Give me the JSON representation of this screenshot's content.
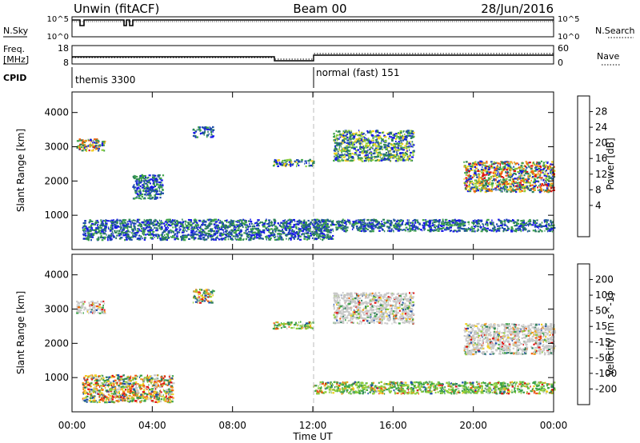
{
  "header": {
    "site": "Unwin (fitACF)",
    "beam": "Beam 00",
    "date": "28/Jun/2016"
  },
  "strips": {
    "nsky_label": "N.Sky",
    "nsearch_label": "N.Search",
    "nsky_ticks": [
      "10^5",
      "10^0"
    ],
    "nsearch_ticks": [
      "10^5",
      "10^0"
    ],
    "freq_label_1": "Freq.",
    "freq_label_2": "[MHz]",
    "freq_ticks": [
      "18",
      "8"
    ],
    "nave_label": "Nave",
    "nave_ticks": [
      "60",
      "0"
    ],
    "cpid_label": "CPID",
    "cpid_left": "themis 3300",
    "cpid_right": "normal (fast) 151"
  },
  "x_axis": {
    "label": "Time UT",
    "ticks": [
      "00:00",
      "04:00",
      "08:00",
      "12:00",
      "16:00",
      "20:00",
      "00:00"
    ],
    "hours": [
      0,
      4,
      8,
      12,
      16,
      20,
      24
    ],
    "range": [
      0,
      24
    ]
  },
  "chart_data": [
    {
      "type": "heatmap",
      "title": "",
      "ylabel": "Slant Range [km]",
      "yticks": [
        1000,
        2000,
        3000,
        4000
      ],
      "ylim": [
        0,
        4600
      ],
      "xlim": [
        0,
        24
      ],
      "colorbar": {
        "label": "Power [dB]",
        "ticks": [
          "28",
          "24",
          "20",
          "16",
          "12",
          "8",
          "4"
        ],
        "values": [
          28,
          24,
          20,
          16,
          12,
          8,
          4
        ]
      },
      "regions": [
        {
          "t0": 0.2,
          "t1": 1.6,
          "r0": 2900,
          "r1": 3250,
          "level": "high"
        },
        {
          "t0": 0.5,
          "t1": 13.0,
          "r0": 300,
          "r1": 900,
          "level": "low"
        },
        {
          "t0": 3.0,
          "t1": 4.5,
          "r0": 1500,
          "r1": 2200,
          "level": "low"
        },
        {
          "t0": 6.0,
          "t1": 7.0,
          "r0": 3300,
          "r1": 3600,
          "level": "low"
        },
        {
          "t0": 10.0,
          "t1": 12.0,
          "r0": 2450,
          "r1": 2650,
          "level": "mid"
        },
        {
          "t0": 12.0,
          "t1": 24.0,
          "r0": 550,
          "r1": 900,
          "level": "low"
        },
        {
          "t0": 13.0,
          "t1": 17.0,
          "r0": 2600,
          "r1": 3500,
          "level": "mid"
        },
        {
          "t0": 19.5,
          "t1": 24.0,
          "r0": 1700,
          "r1": 2600,
          "level": "high"
        }
      ]
    },
    {
      "type": "heatmap",
      "title": "",
      "ylabel": "Slant Range [km]",
      "yticks": [
        1000,
        2000,
        3000,
        4000
      ],
      "ylim": [
        0,
        4600
      ],
      "xlim": [
        0,
        24
      ],
      "colorbar": {
        "label": "Velocity [m s^-1]",
        "ticks": [
          "200",
          "100",
          "50",
          "15",
          "-15",
          "-50",
          "-100",
          "-200"
        ],
        "values": [
          200,
          100,
          50,
          15,
          -15,
          -50,
          -100,
          -200
        ]
      },
      "regions": [
        {
          "t0": 0.2,
          "t1": 1.6,
          "r0": 2900,
          "r1": 3250,
          "level": "ground"
        },
        {
          "t0": 0.5,
          "t1": 5.0,
          "r0": 300,
          "r1": 1100,
          "level": "mixed"
        },
        {
          "t0": 6.0,
          "t1": 7.0,
          "r0": 3200,
          "r1": 3600,
          "level": "mixed"
        },
        {
          "t0": 10.0,
          "t1": 12.0,
          "r0": 2450,
          "r1": 2650,
          "level": "pos"
        },
        {
          "t0": 12.0,
          "t1": 24.0,
          "r0": 550,
          "r1": 900,
          "level": "pos"
        },
        {
          "t0": 13.0,
          "t1": 17.0,
          "r0": 2600,
          "r1": 3500,
          "level": "ground"
        },
        {
          "t0": 19.5,
          "t1": 24.0,
          "r0": 1700,
          "r1": 2600,
          "level": "ground"
        }
      ]
    }
  ],
  "colors": {
    "power": [
      "#1818e8",
      "#1f4fa8",
      "#2a7f5a",
      "#3ea34a",
      "#8ccd3c",
      "#f0d020",
      "#f0a020",
      "#f06010",
      "#e01010"
    ],
    "velocity": [
      "#e01010",
      "#f06010",
      "#f0a020",
      "#f0d020",
      "#c8c8c8",
      "#8ccd3c",
      "#3ea34a",
      "#2a7f5a",
      "#1f4fa8"
    ]
  }
}
